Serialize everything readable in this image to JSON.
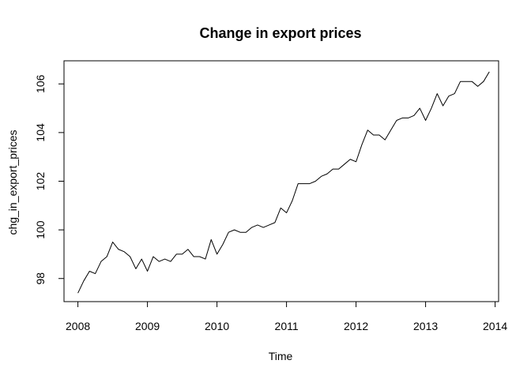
{
  "chart_data": {
    "type": "line",
    "title": "Change in export prices",
    "xlabel": "Time",
    "ylabel": "chg_in_export_prices",
    "xlim": [
      2007.8,
      2014.05
    ],
    "ylim": [
      97.05,
      106.95
    ],
    "xticks": [
      2008,
      2009,
      2010,
      2011,
      2012,
      2013,
      2014
    ],
    "xtick_labels": [
      "2008",
      "2009",
      "2010",
      "2011",
      "2012",
      "2013",
      "2014"
    ],
    "yticks": [
      98,
      100,
      102,
      104,
      106
    ],
    "ytick_labels": [
      "98",
      "100",
      "102",
      "104",
      "106"
    ],
    "grid": false,
    "line_color": "#000000",
    "series": [
      {
        "x": [
          2008.0,
          2008.0833,
          2008.1667,
          2008.25,
          2008.3333,
          2008.4167,
          2008.5,
          2008.5833,
          2008.6667,
          2008.75,
          2008.8333,
          2008.9167,
          2009.0,
          2009.0833,
          2009.1667,
          2009.25,
          2009.3333,
          2009.4167,
          2009.5,
          2009.5833,
          2009.6667,
          2009.75,
          2009.8333,
          2009.9167,
          2010.0,
          2010.0833,
          2010.1667,
          2010.25,
          2010.3333,
          2010.4167,
          2010.5,
          2010.5833,
          2010.6667,
          2010.75,
          2010.8333,
          2010.9167,
          2011.0,
          2011.0833,
          2011.1667,
          2011.25,
          2011.3333,
          2011.4167,
          2011.5,
          2011.5833,
          2011.6667,
          2011.75,
          2011.8333,
          2011.9167,
          2012.0,
          2012.0833,
          2012.1667,
          2012.25,
          2012.3333,
          2012.4167,
          2012.5,
          2012.5833,
          2012.6667,
          2012.75,
          2012.8333,
          2012.9167,
          2013.0,
          2013.0833,
          2013.1667,
          2013.25,
          2013.3333,
          2013.4167,
          2013.5,
          2013.5833,
          2013.6667,
          2013.75,
          2013.8333,
          2013.9167
        ],
        "y": [
          97.4,
          97.9,
          98.3,
          98.2,
          98.7,
          98.9,
          99.5,
          99.2,
          99.1,
          98.9,
          98.4,
          98.8,
          98.3,
          98.9,
          98.7,
          98.8,
          98.7,
          99.0,
          99.0,
          99.2,
          98.9,
          98.9,
          98.8,
          99.6,
          99.0,
          99.4,
          99.9,
          100.0,
          99.9,
          99.9,
          100.1,
          100.2,
          100.1,
          100.2,
          100.3,
          100.9,
          100.7,
          101.2,
          101.9,
          101.9,
          101.9,
          102.0,
          102.2,
          102.3,
          102.5,
          102.5,
          102.7,
          102.9,
          102.8,
          103.5,
          104.1,
          103.9,
          103.9,
          103.7,
          104.1,
          104.5,
          104.6,
          104.6,
          104.7,
          105.0,
          104.5,
          105.0,
          105.6,
          105.1,
          105.5,
          105.6,
          106.1,
          106.1,
          106.1,
          105.9,
          106.1,
          106.5
        ]
      }
    ]
  }
}
